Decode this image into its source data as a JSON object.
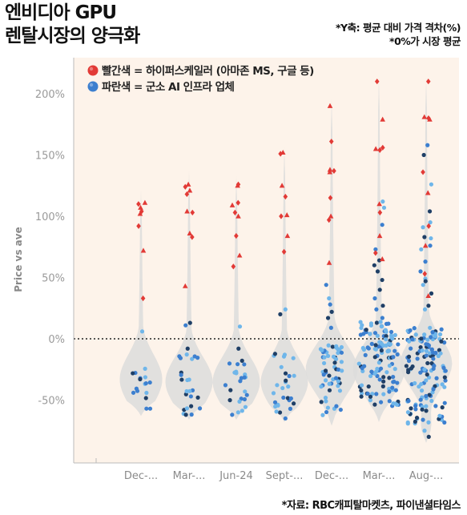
{
  "title": "엔비디아 GPU\n렌탈시장의 양극화",
  "notes": [
    "*Y축: 평균 대비 가격 격차(%)",
    "*0%가 시장 평균"
  ],
  "source": "*자료: RBC캐피탈마켓츠, 파이낸셜타임스",
  "colors": {
    "background": "#fdf3ea",
    "violin": "#dcdcdc",
    "hyperscaler": "#e23a36",
    "infra_light": "#6fb6ea",
    "infra_mid": "#3c7fcf",
    "infra_dark": "#1f3f66",
    "axis_text": "#9a9a9a"
  },
  "chart_data": {
    "type": "scatter",
    "subtype": "violin-strip",
    "ylabel": "Price vs ave",
    "ylim": [
      -100,
      200
    ],
    "yticks": [
      200,
      150,
      100,
      50,
      0,
      -50
    ],
    "ytick_labels": [
      "200%",
      "150%",
      "100%",
      "50%",
      "0%",
      "-50%"
    ],
    "reference_line": 0,
    "categories": [
      "Dec-...",
      "Mar-...",
      "Jun-24",
      "Sept-...",
      "Dec-...",
      "Mar-...",
      "Aug-..."
    ],
    "legend": [
      {
        "label": "빨간색 = 하이퍼스케일러 (아마존 MS, 구글 등)",
        "color": "#e23a36"
      },
      {
        "label": "파란색 = 군소 AI 인프라 업체",
        "color": "#3c7fcf"
      }
    ],
    "series": [
      {
        "name": "빨간색 = 하이퍼스케일러 (아마존 MS, 구글 등)",
        "points": [
          [
            0,
            111
          ],
          [
            0,
            110
          ],
          [
            0,
            107
          ],
          [
            0,
            104
          ],
          [
            0,
            102
          ],
          [
            0,
            92
          ],
          [
            0,
            72
          ],
          [
            0,
            33
          ],
          [
            1,
            126
          ],
          [
            1,
            124
          ],
          [
            1,
            121
          ],
          [
            1,
            118
          ],
          [
            1,
            104
          ],
          [
            1,
            103
          ],
          [
            1,
            86
          ],
          [
            1,
            83
          ],
          [
            1,
            43
          ],
          [
            2,
            126
          ],
          [
            2,
            125
          ],
          [
            2,
            111
          ],
          [
            2,
            109
          ],
          [
            2,
            103
          ],
          [
            2,
            100
          ],
          [
            2,
            84
          ],
          [
            2,
            68
          ],
          [
            2,
            59
          ],
          [
            3,
            152
          ],
          [
            3,
            151
          ],
          [
            3,
            125
          ],
          [
            3,
            116
          ],
          [
            3,
            101
          ],
          [
            3,
            100
          ],
          [
            3,
            84
          ],
          [
            3,
            71
          ],
          [
            4,
            190
          ],
          [
            4,
            161
          ],
          [
            4,
            138
          ],
          [
            4,
            137
          ],
          [
            4,
            136
          ],
          [
            4,
            115
          ],
          [
            4,
            100
          ],
          [
            4,
            97
          ],
          [
            4,
            62
          ],
          [
            5,
            210
          ],
          [
            5,
            179
          ],
          [
            5,
            156
          ],
          [
            5,
            155
          ],
          [
            5,
            154
          ],
          [
            5,
            110
          ],
          [
            5,
            103
          ],
          [
            5,
            84
          ],
          [
            5,
            70
          ],
          [
            5,
            65
          ],
          [
            6,
            210
          ],
          [
            6,
            181
          ],
          [
            6,
            180
          ],
          [
            6,
            179
          ],
          [
            6,
            136
          ],
          [
            6,
            119
          ],
          [
            6,
            92
          ],
          [
            6,
            76
          ],
          [
            6,
            53
          ],
          [
            6,
            35
          ]
        ]
      },
      {
        "name": "파란색 = 군소 AI 인프라 업체",
        "clusters": [
          {
            "x": 0,
            "n": 14,
            "lo": -57,
            "hi": -22
          },
          {
            "x": 1,
            "n": 22,
            "lo": -62,
            "hi": -10
          },
          {
            "x": 2,
            "n": 22,
            "lo": -62,
            "hi": -16
          },
          {
            "x": 3,
            "n": 26,
            "lo": -62,
            "hi": -12
          },
          {
            "x": 4,
            "n": 55,
            "lo": -66,
            "hi": -4
          },
          {
            "x": 5,
            "n": 120,
            "lo": -55,
            "hi": 14
          },
          {
            "x": 6,
            "n": 140,
            "lo": -70,
            "hi": 10
          }
        ],
        "outliers": [
          [
            0,
            6
          ],
          [
            0,
            -33
          ],
          [
            0,
            -57
          ],
          [
            1,
            13
          ],
          [
            1,
            11
          ],
          [
            1,
            -8
          ],
          [
            1,
            -55
          ],
          [
            1,
            -62
          ],
          [
            2,
            10
          ],
          [
            2,
            -8
          ],
          [
            2,
            -60
          ],
          [
            2,
            -62
          ],
          [
            3,
            24
          ],
          [
            3,
            20
          ],
          [
            3,
            -13
          ],
          [
            3,
            -65
          ],
          [
            4,
            44
          ],
          [
            4,
            33
          ],
          [
            4,
            28
          ],
          [
            4,
            22
          ],
          [
            4,
            17
          ],
          [
            4,
            9
          ],
          [
            4,
            -55
          ],
          [
            5,
            112
          ],
          [
            5,
            107
          ],
          [
            5,
            93
          ],
          [
            5,
            73
          ],
          [
            5,
            64
          ],
          [
            5,
            60
          ],
          [
            5,
            55
          ],
          [
            5,
            48
          ],
          [
            5,
            40
          ],
          [
            5,
            33
          ],
          [
            5,
            27
          ],
          [
            5,
            24
          ],
          [
            5,
            17
          ],
          [
            5,
            -45
          ],
          [
            6,
            158
          ],
          [
            6,
            150
          ],
          [
            6,
            126
          ],
          [
            6,
            104
          ],
          [
            6,
            95
          ],
          [
            6,
            91
          ],
          [
            6,
            83
          ],
          [
            6,
            82
          ],
          [
            6,
            76
          ],
          [
            6,
            73
          ],
          [
            6,
            63
          ],
          [
            6,
            55
          ],
          [
            6,
            49
          ],
          [
            6,
            47
          ],
          [
            6,
            44
          ],
          [
            6,
            37
          ],
          [
            6,
            27
          ],
          [
            6,
            24
          ],
          [
            6,
            -75
          ],
          [
            6,
            -80
          ]
        ]
      }
    ],
    "violins": [
      {
        "x": 0,
        "lo": -63,
        "hi": 121,
        "peak": -33,
        "w": 0.45
      },
      {
        "x": 1,
        "lo": -66,
        "hi": 137,
        "peak": -35,
        "w": 0.5
      },
      {
        "x": 2,
        "lo": -66,
        "hi": 133,
        "peak": -35,
        "w": 0.5
      },
      {
        "x": 3,
        "lo": -68,
        "hi": 157,
        "peak": -35,
        "w": 0.5
      },
      {
        "x": 4,
        "lo": -71,
        "hi": 196,
        "peak": -25,
        "w": 0.55
      },
      {
        "x": 5,
        "lo": -68,
        "hi": 213,
        "peak": -25,
        "w": 0.55
      },
      {
        "x": 6,
        "lo": -85,
        "hi": 213,
        "peak": -20,
        "w": 0.55
      }
    ]
  }
}
